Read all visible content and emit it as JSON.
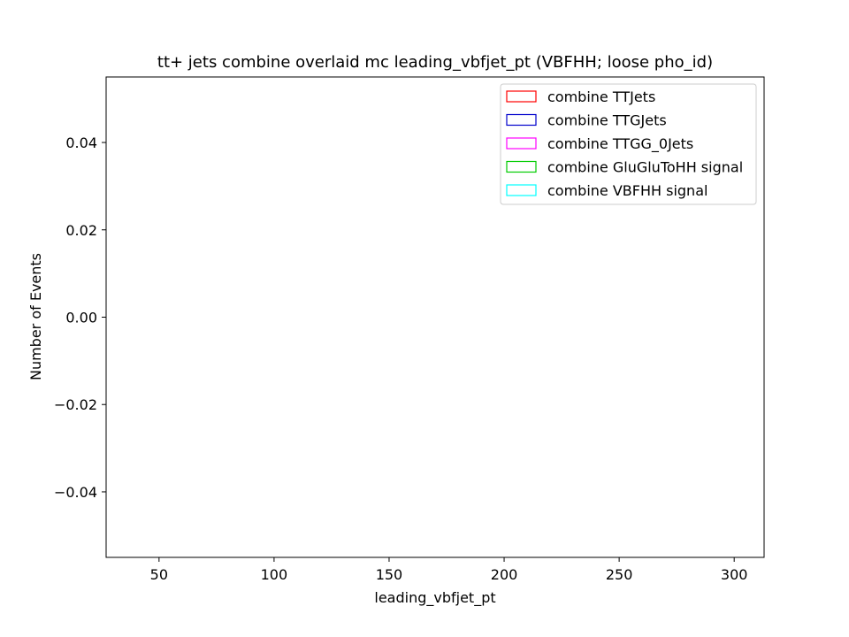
{
  "chart_data": {
    "type": "bar",
    "title": "tt+ jets combine overlaid mc leading_vbfjet_pt (VBFHH; loose pho_id)",
    "xlabel": "leading_vbfjet_pt",
    "ylabel": "Number of Events",
    "xlim": [
      27,
      313
    ],
    "ylim": [
      -0.055,
      0.055
    ],
    "x_ticks": [
      50,
      100,
      150,
      200,
      250,
      300
    ],
    "x_tick_labels": [
      "50",
      "100",
      "150",
      "200",
      "250",
      "300"
    ],
    "y_ticks": [
      -0.04,
      -0.02,
      0.0,
      0.02,
      0.04
    ],
    "y_tick_labels": [
      "−0.04",
      "−0.02",
      "0.00",
      "0.02",
      "0.04"
    ],
    "grid": false,
    "legend_position": "top-right",
    "series": [
      {
        "name": "combine TTJets",
        "color": "#ff0000",
        "values": []
      },
      {
        "name": "combine TTGJets",
        "color": "#0000cc",
        "values": []
      },
      {
        "name": "combine TTGG_0Jets",
        "color": "#ff00ff",
        "values": []
      },
      {
        "name": "combine GluGluToHH signal",
        "color": "#00cc00",
        "values": []
      },
      {
        "name": "combine VBFHH signal",
        "color": "#00ffff",
        "values": []
      }
    ]
  }
}
